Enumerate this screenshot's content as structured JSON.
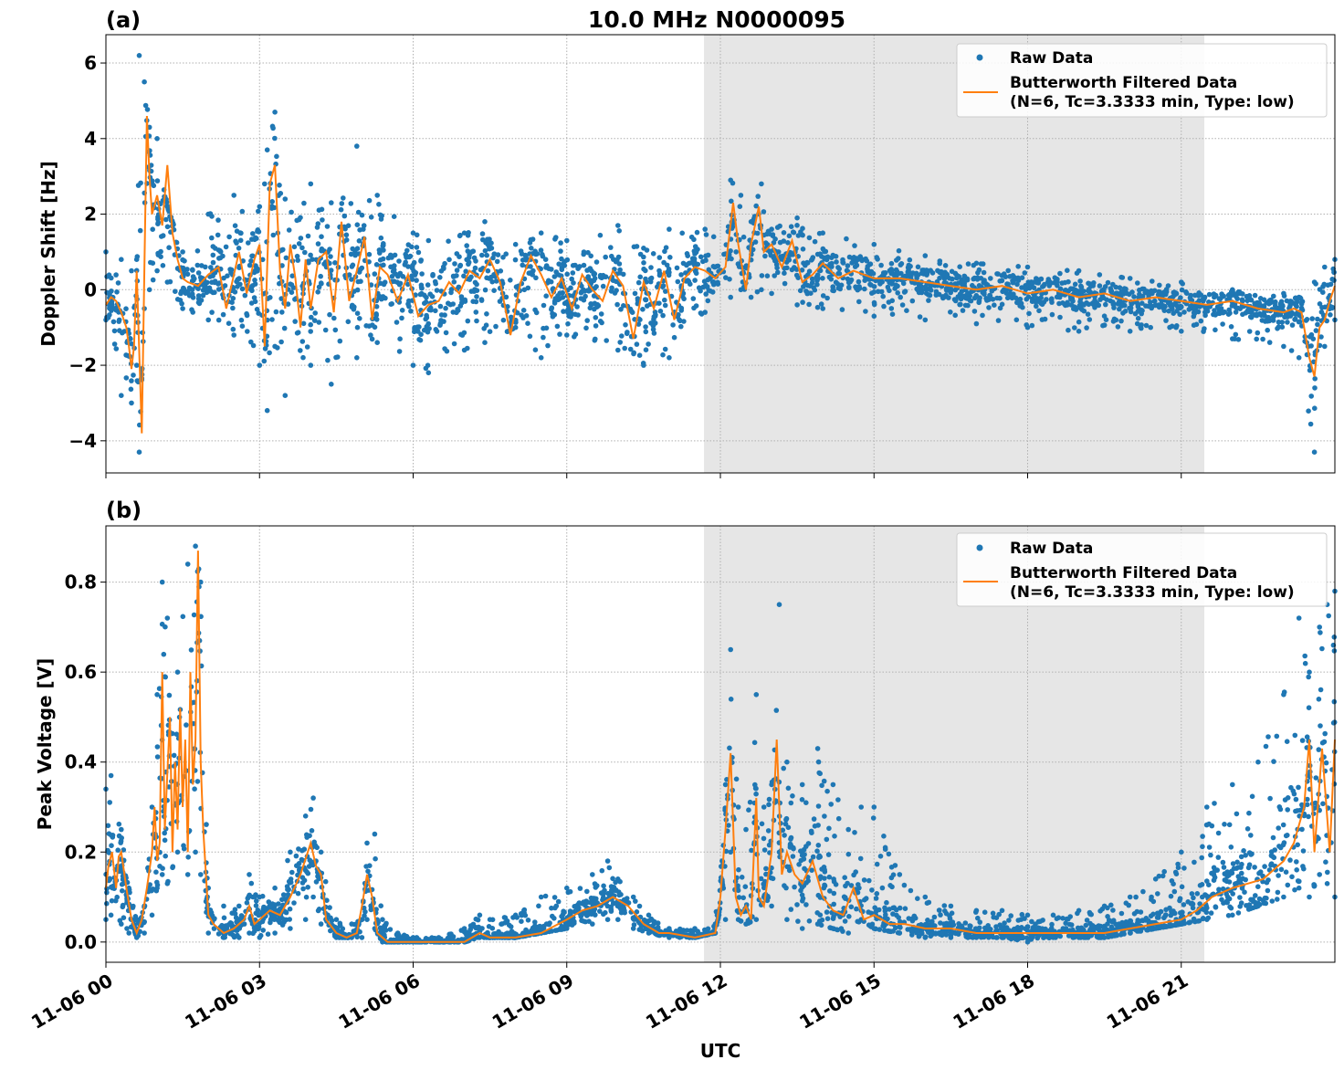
{
  "title": "10.0 MHz N0000095",
  "xlabel": "UTC",
  "x_ticks": [
    "11-06 00",
    "11-06 03",
    "11-06 06",
    "11-06 09",
    "11-06 12",
    "11-06 15",
    "11-06 18",
    "11-06 21"
  ],
  "x_tick_hours": [
    0,
    3,
    6,
    9,
    12,
    15,
    18,
    21
  ],
  "xlim_hours": [
    0,
    24
  ],
  "shaded_region_hours": [
    11.68,
    21.45
  ],
  "legend": {
    "raw": "Raw Data",
    "filtered_line1": "Butterworth Filtered Data",
    "filtered_line2": "(N=6, Tc=3.3333 min, Type: low)"
  },
  "colors": {
    "raw": "#1f77b4",
    "filtered": "#ff7f0e",
    "shade": "#e6e6e6",
    "grid": "#b0b0b0"
  },
  "chart_data": [
    {
      "type": "scatter",
      "panel": "(a)",
      "ylabel": "Doppler Shift [Hz]",
      "ylim": [
        -4.85,
        6.75
      ],
      "yticks": [
        -4,
        -2,
        0,
        2,
        4,
        6
      ],
      "ytick_labels": [
        "−4",
        "−2",
        "0",
        "2",
        "4",
        "6"
      ],
      "grid": true,
      "legend_position": "top-right",
      "series": [
        {
          "name": "Raw Data",
          "style": "dots",
          "envelope_hours": [
            0,
            0.3,
            0.5,
            0.6,
            0.65,
            0.75,
            0.85,
            1.0,
            1.2,
            1.5,
            2.0,
            2.5,
            3.0,
            3.15,
            3.3,
            3.5,
            4.0,
            4.4,
            4.9,
            5.3,
            6.0,
            6.3,
            7.0,
            7.4,
            8.0,
            8.5,
            9.0,
            10.0,
            10.5,
            11.0,
            11.7,
            12.2,
            12.4,
            12.6,
            12.8,
            13.0,
            13.5,
            14.0,
            15.0,
            16.0,
            17.0,
            18.0,
            19.0,
            20.0,
            21.0,
            22.0,
            23.0,
            23.3,
            23.6,
            23.8,
            24.0
          ],
          "envelope_low": [
            -0.8,
            -2.8,
            -3.0,
            -2.0,
            -4.3,
            -0.5,
            0.0,
            0.5,
            0.2,
            -0.5,
            -0.8,
            -1.2,
            -2.0,
            -3.2,
            -1.5,
            -2.8,
            -2.0,
            -2.5,
            -1.8,
            -1.4,
            -2.0,
            -2.2,
            -1.6,
            -1.4,
            -1.0,
            -1.8,
            -1.2,
            -1.6,
            -2.0,
            -1.8,
            -0.6,
            -0.2,
            0.0,
            -0.2,
            0.0,
            -0.1,
            -0.4,
            -0.5,
            -0.7,
            -0.8,
            -0.9,
            -1.0,
            -1.1,
            -1.1,
            -1.1,
            -1.3,
            -1.5,
            -1.8,
            -4.3,
            -1.5,
            -0.8
          ],
          "envelope_high": [
            1.0,
            0.8,
            0.5,
            0.8,
            6.2,
            5.5,
            4.3,
            4.0,
            2.2,
            1.0,
            2.0,
            2.5,
            2.2,
            3.7,
            4.7,
            2.4,
            2.8,
            2.3,
            3.8,
            2.5,
            1.5,
            1.3,
            1.5,
            1.8,
            1.2,
            1.5,
            1.3,
            1.7,
            1.1,
            1.6,
            1.6,
            2.9,
            2.5,
            1.8,
            2.8,
            1.6,
            1.9,
            1.5,
            1.2,
            0.9,
            0.7,
            0.6,
            0.5,
            0.3,
            0.2,
            0.0,
            -0.1,
            -0.2,
            0.2,
            0.6,
            0.8
          ]
        },
        {
          "name": "Butterworth Filtered Data",
          "style": "line",
          "x_hours": [
            0,
            0.1,
            0.2,
            0.3,
            0.4,
            0.45,
            0.5,
            0.55,
            0.6,
            0.7,
            0.75,
            0.8,
            0.85,
            0.9,
            1.0,
            1.1,
            1.2,
            1.3,
            1.4,
            1.5,
            1.6,
            1.8,
            2.0,
            2.2,
            2.35,
            2.5,
            2.6,
            2.75,
            2.9,
            3.0,
            3.1,
            3.2,
            3.3,
            3.4,
            3.5,
            3.6,
            3.7,
            3.8,
            3.9,
            4.0,
            4.15,
            4.3,
            4.45,
            4.6,
            4.75,
            4.9,
            5.05,
            5.2,
            5.35,
            5.5,
            5.7,
            5.9,
            6.1,
            6.3,
            6.5,
            6.7,
            6.9,
            7.1,
            7.3,
            7.5,
            7.7,
            7.9,
            8.1,
            8.3,
            8.5,
            8.7,
            8.9,
            9.1,
            9.3,
            9.5,
            9.7,
            9.9,
            10.1,
            10.3,
            10.5,
            10.7,
            10.9,
            11.1,
            11.3,
            11.5,
            11.7,
            11.9,
            12.1,
            12.25,
            12.35,
            12.5,
            12.6,
            12.75,
            12.85,
            13.0,
            13.2,
            13.4,
            13.6,
            13.8,
            14.0,
            14.3,
            14.6,
            15.0,
            15.5,
            16.0,
            16.5,
            17.0,
            17.5,
            18.0,
            18.5,
            19.0,
            19.5,
            20.0,
            20.5,
            21.0,
            21.5,
            22.0,
            22.5,
            23.0,
            23.2,
            23.35,
            23.5,
            23.6,
            23.7,
            23.8,
            23.9,
            24.0
          ],
          "values": [
            -0.4,
            -0.2,
            -0.3,
            -0.6,
            -1.0,
            -1.5,
            -2.1,
            -1.5,
            0.5,
            -3.8,
            0.5,
            4.6,
            3.0,
            2.0,
            2.5,
            1.7,
            3.3,
            1.5,
            0.8,
            0.3,
            0.2,
            0.1,
            0.4,
            0.6,
            -0.5,
            0.4,
            1.0,
            -0.1,
            0.8,
            1.2,
            -1.5,
            2.8,
            3.3,
            0.5,
            -0.5,
            1.2,
            0.3,
            -1.0,
            0.8,
            -0.5,
            0.8,
            1.0,
            -0.6,
            1.8,
            -0.3,
            0.5,
            1.4,
            -0.8,
            0.6,
            0.4,
            -0.3,
            0.4,
            -0.7,
            -0.4,
            -0.3,
            0.2,
            -0.1,
            0.5,
            0.3,
            0.8,
            0.2,
            -1.2,
            0.2,
            0.9,
            0.4,
            -0.2,
            0.3,
            -0.5,
            0.4,
            0.0,
            -0.3,
            0.5,
            0.1,
            -1.3,
            0.2,
            -0.5,
            0.5,
            -0.8,
            0.3,
            0.6,
            0.5,
            0.3,
            0.6,
            2.3,
            1.2,
            0.0,
            1.2,
            2.2,
            1.0,
            1.2,
            0.6,
            1.3,
            0.2,
            0.4,
            0.7,
            0.3,
            0.5,
            0.3,
            0.3,
            0.2,
            0.1,
            0.0,
            0.1,
            -0.1,
            0.0,
            -0.2,
            -0.1,
            -0.3,
            -0.2,
            -0.3,
            -0.4,
            -0.3,
            -0.5,
            -0.6,
            -0.5,
            -0.6,
            -1.8,
            -2.3,
            -1.0,
            -0.8,
            -0.3,
            0.1
          ]
        }
      ]
    },
    {
      "type": "scatter",
      "panel": "(b)",
      "ylabel": "Peak Voltage [V]",
      "ylim": [
        -0.045,
        0.925
      ],
      "yticks": [
        0.0,
        0.2,
        0.4,
        0.6,
        0.8
      ],
      "ytick_labels": [
        "0.0",
        "0.2",
        "0.4",
        "0.6",
        "0.8"
      ],
      "grid": true,
      "legend_position": "top-right",
      "series": [
        {
          "name": "Raw Data",
          "style": "dots",
          "envelope_hours": [
            0,
            0.1,
            0.3,
            0.45,
            0.6,
            0.75,
            0.9,
            1.0,
            1.1,
            1.2,
            1.4,
            1.6,
            1.75,
            1.85,
            2.0,
            2.3,
            2.6,
            2.8,
            3.0,
            3.3,
            3.6,
            3.9,
            4.05,
            4.2,
            4.5,
            4.8,
            5.0,
            5.1,
            5.25,
            5.4,
            5.7,
            6.0,
            6.5,
            7.0,
            7.3,
            7.5,
            8.0,
            8.5,
            9.0,
            9.5,
            9.8,
            10.0,
            10.3,
            10.6,
            11.0,
            11.5,
            11.9,
            12.1,
            12.2,
            12.35,
            12.5,
            12.7,
            12.85,
            13.0,
            13.15,
            13.3,
            13.6,
            13.9,
            14.2,
            14.5,
            14.75,
            15.0,
            15.5,
            16.0,
            16.5,
            17.0,
            17.5,
            18.0,
            18.5,
            19.0,
            19.5,
            20.0,
            20.5,
            21.0,
            21.5,
            22.0,
            22.5,
            23.0,
            23.3,
            23.5,
            23.7,
            23.85,
            24.0
          ],
          "envelope_low": [
            0.05,
            0.06,
            0.04,
            0.02,
            0.01,
            0.02,
            0.06,
            0.12,
            0.15,
            0.13,
            0.2,
            0.15,
            0.2,
            0.15,
            0.02,
            0.01,
            0.01,
            0.02,
            0.01,
            0.02,
            0.03,
            0.05,
            0.1,
            0.04,
            0.01,
            0.01,
            0.01,
            0.05,
            0.03,
            0.0,
            0.0,
            0.0,
            0.0,
            0.0,
            0.01,
            0.01,
            0.01,
            0.02,
            0.03,
            0.04,
            0.05,
            0.05,
            0.03,
            0.02,
            0.01,
            0.01,
            0.02,
            0.05,
            0.2,
            0.05,
            0.04,
            0.05,
            0.1,
            0.08,
            0.2,
            0.05,
            0.03,
            0.04,
            0.03,
            0.02,
            0.05,
            0.03,
            0.02,
            0.01,
            0.01,
            0.01,
            0.01,
            0.0,
            0.01,
            0.01,
            0.01,
            0.02,
            0.03,
            0.04,
            0.05,
            0.06,
            0.08,
            0.1,
            0.12,
            0.1,
            0.15,
            0.13,
            0.1
          ],
          "envelope_high": [
            0.34,
            0.37,
            0.25,
            0.12,
            0.05,
            0.08,
            0.3,
            0.55,
            0.8,
            0.72,
            0.6,
            0.84,
            0.88,
            0.8,
            0.12,
            0.08,
            0.08,
            0.15,
            0.1,
            0.12,
            0.2,
            0.28,
            0.32,
            0.2,
            0.05,
            0.04,
            0.05,
            0.22,
            0.24,
            0.05,
            0.02,
            0.01,
            0.01,
            0.03,
            0.06,
            0.05,
            0.06,
            0.1,
            0.12,
            0.15,
            0.18,
            0.14,
            0.1,
            0.06,
            0.03,
            0.03,
            0.04,
            0.35,
            0.65,
            0.3,
            0.25,
            0.55,
            0.3,
            0.35,
            0.75,
            0.4,
            0.35,
            0.43,
            0.35,
            0.25,
            0.3,
            0.3,
            0.15,
            0.1,
            0.08,
            0.07,
            0.07,
            0.06,
            0.06,
            0.07,
            0.08,
            0.1,
            0.14,
            0.2,
            0.3,
            0.35,
            0.4,
            0.55,
            0.72,
            0.6,
            0.7,
            0.75,
            0.78
          ]
        },
        {
          "name": "Butterworth Filtered Data",
          "style": "line",
          "x_hours": [
            0,
            0.05,
            0.12,
            0.2,
            0.25,
            0.3,
            0.4,
            0.5,
            0.6,
            0.7,
            0.8,
            0.9,
            0.95,
            1.0,
            1.05,
            1.1,
            1.15,
            1.25,
            1.3,
            1.35,
            1.4,
            1.45,
            1.5,
            1.55,
            1.6,
            1.65,
            1.7,
            1.75,
            1.8,
            1.85,
            1.9,
            2.0,
            2.1,
            2.3,
            2.5,
            2.7,
            2.8,
            2.9,
            3.0,
            3.2,
            3.4,
            3.6,
            3.8,
            4.0,
            4.1,
            4.2,
            4.3,
            4.5,
            4.7,
            4.9,
            5.0,
            5.1,
            5.2,
            5.3,
            5.5,
            6.0,
            6.5,
            7.0,
            7.3,
            7.5,
            8.0,
            8.5,
            9.0,
            9.3,
            9.6,
            9.9,
            10.2,
            10.5,
            10.8,
            11.0,
            11.5,
            11.9,
            12.0,
            12.1,
            12.2,
            12.3,
            12.4,
            12.5,
            12.6,
            12.7,
            12.75,
            12.85,
            13.0,
            13.1,
            13.2,
            13.3,
            13.45,
            13.6,
            13.8,
            14.0,
            14.2,
            14.4,
            14.6,
            14.8,
            15.0,
            15.3,
            15.6,
            16.0,
            16.5,
            17.0,
            17.5,
            18.0,
            18.5,
            19.0,
            19.5,
            20.0,
            20.5,
            21.0,
            21.3,
            21.6,
            22.0,
            22.3,
            22.6,
            23.0,
            23.2,
            23.4,
            23.5,
            23.6,
            23.75,
            23.9,
            24.0
          ],
          "values": [
            0.12,
            0.17,
            0.2,
            0.12,
            0.19,
            0.2,
            0.12,
            0.05,
            0.02,
            0.05,
            0.12,
            0.2,
            0.3,
            0.18,
            0.22,
            0.6,
            0.25,
            0.5,
            0.2,
            0.4,
            0.25,
            0.52,
            0.3,
            0.45,
            0.2,
            0.6,
            0.35,
            0.45,
            0.87,
            0.4,
            0.25,
            0.06,
            0.04,
            0.02,
            0.03,
            0.05,
            0.08,
            0.04,
            0.05,
            0.07,
            0.06,
            0.1,
            0.15,
            0.22,
            0.17,
            0.15,
            0.05,
            0.02,
            0.01,
            0.02,
            0.08,
            0.15,
            0.1,
            0.02,
            0.0,
            0.0,
            0.0,
            0.0,
            0.02,
            0.01,
            0.01,
            0.02,
            0.05,
            0.07,
            0.08,
            0.1,
            0.08,
            0.04,
            0.02,
            0.02,
            0.01,
            0.02,
            0.1,
            0.25,
            0.42,
            0.1,
            0.06,
            0.08,
            0.05,
            0.32,
            0.1,
            0.08,
            0.2,
            0.45,
            0.15,
            0.2,
            0.15,
            0.13,
            0.18,
            0.1,
            0.07,
            0.06,
            0.12,
            0.05,
            0.06,
            0.04,
            0.04,
            0.03,
            0.03,
            0.02,
            0.02,
            0.02,
            0.02,
            0.02,
            0.02,
            0.03,
            0.04,
            0.05,
            0.07,
            0.1,
            0.12,
            0.13,
            0.14,
            0.18,
            0.22,
            0.3,
            0.45,
            0.2,
            0.43,
            0.2,
            0.45
          ]
        }
      ]
    }
  ]
}
